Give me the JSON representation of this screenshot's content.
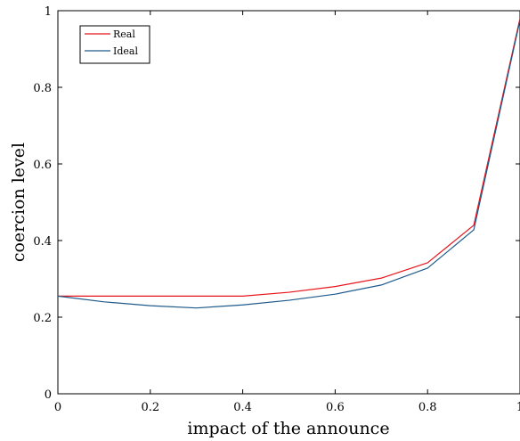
{
  "chart_data": {
    "type": "line",
    "title": "",
    "xlabel": "impact of the announce",
    "ylabel": "coercion level",
    "xlim": [
      0,
      1
    ],
    "ylim": [
      0,
      1
    ],
    "x_ticks": [
      0,
      0.2,
      0.4,
      0.6,
      0.8,
      1
    ],
    "x_tick_labels": [
      "0",
      "0.2",
      "0.4",
      "0.6",
      "0.8",
      "1"
    ],
    "y_ticks": [
      0,
      0.2,
      0.4,
      0.6,
      0.8,
      1
    ],
    "y_tick_labels": [
      "0",
      "0.2",
      "0.4",
      "0.6",
      "0.8",
      "1"
    ],
    "grid": false,
    "legend_position": "top-left",
    "x": [
      0,
      0.1,
      0.2,
      0.3,
      0.4,
      0.5,
      0.6,
      0.7,
      0.8,
      0.9,
      1.0
    ],
    "series": [
      {
        "name": "Real",
        "color": "#e8141c",
        "values": [
          0.255,
          0.255,
          0.255,
          0.255,
          0.255,
          0.265,
          0.28,
          0.302,
          0.342,
          0.44,
          0.98
        ]
      },
      {
        "name": "Ideal",
        "color": "#1f5a8a",
        "values": [
          0.255,
          0.24,
          0.23,
          0.224,
          0.232,
          0.244,
          0.26,
          0.284,
          0.328,
          0.428,
          0.975
        ]
      }
    ]
  }
}
